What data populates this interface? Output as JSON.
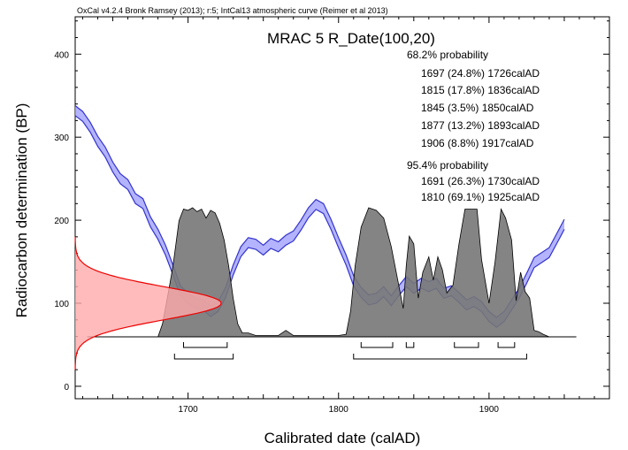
{
  "header": {
    "credit": "OxCal v4.2.4 Bronk Ramsey (2013); r:5; IntCal13 atmospheric curve (Reimer et al 2013)"
  },
  "chart_data": {
    "type": "area",
    "title": "MRAC 5 R_Date(100,20)",
    "xlabel": "Calibrated date (calAD)",
    "ylabel": "Radiocarbon determination (BP)",
    "xlim": [
      1625,
      1980
    ],
    "ylim": [
      -15,
      445
    ],
    "x_ticks": [
      "1700",
      "1800",
      "1900"
    ],
    "y_ticks": [
      "0",
      "100",
      "200",
      "300",
      "400"
    ],
    "colors": {
      "calibration_curve": "#3333cc",
      "calibration_fill": "#9999ff",
      "radiocarbon_curve": "#ee0000",
      "radiocarbon_fill": "#ffaaaa",
      "posterior_fill": "#777777"
    },
    "ranges": {
      "p68": {
        "label": "68.2% probability",
        "items": [
          "1697 (24.8%) 1726calAD",
          "1815 (17.8%) 1836calAD",
          "1845 (3.5%) 1850calAD",
          "1877 (13.2%) 1893calAD",
          "1906 (8.8%) 1917calAD"
        ],
        "intervals": [
          [
            1697,
            1726
          ],
          [
            1815,
            1836
          ],
          [
            1845,
            1850
          ],
          [
            1877,
            1893
          ],
          [
            1906,
            1917
          ]
        ]
      },
      "p95": {
        "label": "95.4% probability",
        "items": [
          "1691 (26.3%) 1730calAD",
          "1810 (69.1%) 1925calAD"
        ],
        "intervals": [
          [
            1691,
            1730
          ],
          [
            1810,
            1925
          ]
        ]
      }
    },
    "radiocarbon_date": {
      "mean_bp": 100,
      "sd": 20
    },
    "calibration_curve": {
      "x": [
        1625,
        1630,
        1635,
        1640,
        1645,
        1650,
        1655,
        1660,
        1665,
        1670,
        1675,
        1680,
        1685,
        1690,
        1695,
        1700,
        1705,
        1710,
        1715,
        1720,
        1725,
        1730,
        1735,
        1740,
        1745,
        1750,
        1755,
        1760,
        1765,
        1770,
        1775,
        1780,
        1785,
        1790,
        1795,
        1800,
        1805,
        1810,
        1815,
        1820,
        1825,
        1830,
        1835,
        1840,
        1845,
        1850,
        1855,
        1860,
        1865,
        1870,
        1875,
        1880,
        1885,
        1890,
        1895,
        1900,
        1905,
        1910,
        1915,
        1920,
        1925,
        1930,
        1935,
        1940,
        1945,
        1950
      ],
      "y": [
        332,
        325,
        312,
        295,
        282,
        264,
        250,
        243,
        226,
        220,
        198,
        183,
        164,
        140,
        115,
        106,
        100,
        98,
        90,
        96,
        113,
        140,
        162,
        173,
        171,
        164,
        172,
        168,
        176,
        181,
        194,
        209,
        219,
        214,
        195,
        173,
        152,
        127,
        113,
        104,
        106,
        114,
        103,
        115,
        126,
        118,
        124,
        120,
        124,
        112,
        115,
        107,
        98,
        102,
        96,
        84,
        77,
        84,
        98,
        112,
        130,
        149,
        155,
        161,
        178,
        195
      ],
      "half_width": 6
    },
    "posterior_density": {
      "x": [
        1680,
        1683,
        1687,
        1690,
        1694,
        1697,
        1700,
        1703,
        1706,
        1709,
        1712,
        1715,
        1718,
        1721,
        1724,
        1727,
        1730,
        1733,
        1736,
        1740,
        1745,
        1760,
        1765,
        1770,
        1780,
        1790,
        1800,
        1805,
        1808,
        1811,
        1815,
        1820,
        1825,
        1830,
        1835,
        1840,
        1843,
        1845,
        1847,
        1850,
        1853,
        1856,
        1860,
        1863,
        1866,
        1869,
        1872,
        1876,
        1880,
        1884,
        1888,
        1892,
        1895,
        1900,
        1904,
        1908,
        1911,
        1915,
        1918,
        1921,
        1924,
        1927,
        1930,
        1933,
        1936,
        1940,
        1945
      ],
      "y": [
        0,
        0.1,
        0.35,
        0.55,
        0.9,
        0.99,
        0.98,
        1.0,
        0.97,
        0.99,
        0.92,
        0.98,
        0.96,
        0.88,
        0.75,
        0.55,
        0.3,
        0.1,
        0.03,
        0.03,
        0.01,
        0.01,
        0.05,
        0.01,
        0.01,
        0.01,
        0.01,
        0.02,
        0.2,
        0.55,
        0.85,
        1.0,
        0.98,
        0.92,
        0.7,
        0.4,
        0.22,
        0.55,
        0.78,
        0.72,
        0.3,
        0.5,
        0.62,
        0.44,
        0.62,
        0.52,
        0.34,
        0.4,
        0.72,
        0.99,
        0.99,
        0.99,
        0.6,
        0.26,
        0.58,
        0.99,
        0.92,
        0.75,
        0.28,
        0.5,
        0.35,
        0.3,
        0.05,
        0.04,
        0.02,
        0,
        0
      ]
    }
  }
}
